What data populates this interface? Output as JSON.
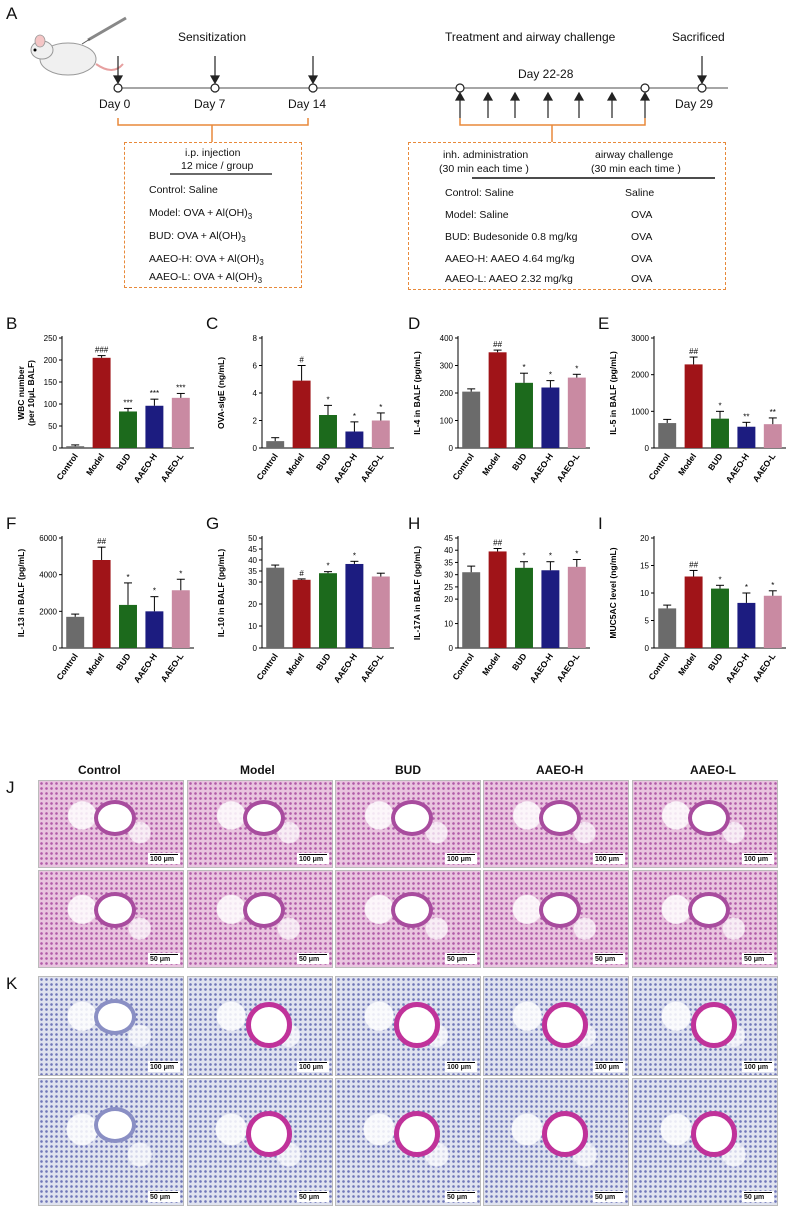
{
  "panel_letters": {
    "a": "A",
    "b": "B",
    "c": "C",
    "d": "D",
    "e": "E",
    "f": "F",
    "g": "G",
    "h": "H",
    "i": "I",
    "j": "J",
    "k": "K"
  },
  "timeline": {
    "sensitization": "Sensitization",
    "treatment": "Treatment and  airway challenge",
    "sacrificed": "Sacrificed",
    "day_range": "Day 22-28",
    "days": [
      "Day 0",
      "Day 7",
      "Day 14",
      "Day 29"
    ]
  },
  "left_box": {
    "line1": "i.p. injection",
    "line2": "12 mice / group",
    "rows": [
      "Control: Saline",
      "Model: OVA + Al(OH)",
      "BUD: OVA + Al(OH)",
      "AAEO-H: OVA + Al(OH)",
      "AAEO-L: OVA + Al(OH)"
    ],
    "subscript": "3"
  },
  "right_box": {
    "col1_h1": "inh. administration",
    "col1_h2": "(30 min each time )",
    "col2_h1": "airway challenge",
    "col2_h2": "(30 min each time )",
    "rows": [
      {
        "left": "Control: Saline",
        "right": "Saline"
      },
      {
        "left": "Model: Saline",
        "right": "OVA"
      },
      {
        "left": "BUD: Budesonide 0.8 mg/kg",
        "right": "OVA"
      },
      {
        "left": "AAEO-H: AAEO 4.64 mg/kg",
        "right": "OVA"
      },
      {
        "left": "AAEO-L: AAEO  2.32 mg/kg",
        "right": "OVA"
      }
    ]
  },
  "colors": {
    "control": "#6b6b6b",
    "model": "#a01418",
    "bud": "#1c6a1c",
    "aaeo_h": "#1c1c80",
    "aaeo_l": "#c98aa2",
    "accent": "#e8893a"
  },
  "chart_data": [
    {
      "type": "bar",
      "ylabel": "WBC number\n(per 10μL BALF)",
      "ylim": [
        0,
        250
      ],
      "ticks": [
        0,
        50,
        100,
        150,
        200,
        250
      ],
      "categories": [
        "Control",
        "Model",
        "BUD",
        "AAEO-H",
        "AAEO-L"
      ],
      "values": [
        4,
        205,
        83,
        96,
        114
      ],
      "errors": [
        3,
        5,
        7,
        15,
        10
      ],
      "annotations": [
        "",
        "###",
        "***",
        "***",
        "***"
      ]
    },
    {
      "type": "bar",
      "ylabel": "OVA-sIgE (ng/mL)",
      "ylim": [
        0,
        8
      ],
      "ticks": [
        0,
        2,
        4,
        6,
        8
      ],
      "categories": [
        "Control",
        "Model",
        "BUD",
        "AAEO-H",
        "AAEO-L"
      ],
      "values": [
        0.5,
        4.9,
        2.4,
        1.2,
        2.0
      ],
      "errors": [
        0.25,
        1.1,
        0.7,
        0.7,
        0.55
      ],
      "annotations": [
        "",
        "#",
        "*",
        "*",
        "*"
      ]
    },
    {
      "type": "bar",
      "ylabel": "IL-4 in BALF (pg/mL)",
      "ylim": [
        0,
        400
      ],
      "ticks": [
        0,
        100,
        200,
        300,
        400
      ],
      "categories": [
        "Control",
        "Model",
        "BUD",
        "AAEO-H",
        "AAEO-L"
      ],
      "values": [
        205,
        348,
        237,
        220,
        256
      ],
      "errors": [
        10,
        8,
        35,
        25,
        12
      ],
      "annotations": [
        "",
        "##",
        "*",
        "*",
        "*"
      ]
    },
    {
      "type": "bar",
      "ylabel": "IL-5 in BALF (pg/mL)",
      "ylim": [
        0,
        3000
      ],
      "ticks": [
        0,
        1000,
        2000,
        3000
      ],
      "categories": [
        "Control",
        "Model",
        "BUD",
        "AAEO-H",
        "AAEO-L"
      ],
      "values": [
        680,
        2280,
        800,
        580,
        650
      ],
      "errors": [
        100,
        200,
        200,
        120,
        170
      ],
      "annotations": [
        "",
        "##",
        "*",
        "**",
        "**"
      ]
    },
    {
      "type": "bar",
      "ylabel": "IL-13 in BALF  (pg/mL)",
      "ylim": [
        0,
        6000
      ],
      "ticks": [
        0,
        2000,
        4000,
        6000
      ],
      "categories": [
        "Control",
        "Model",
        "BUD",
        "AAEO-H",
        "AAEO-L"
      ],
      "values": [
        1700,
        4800,
        2350,
        2000,
        3150
      ],
      "errors": [
        150,
        700,
        1200,
        800,
        600
      ],
      "annotations": [
        "",
        "##",
        "*",
        "*",
        "*"
      ]
    },
    {
      "type": "bar",
      "ylabel": "IL-10 in BALF (pg/mL)",
      "ylim": [
        0,
        50
      ],
      "ticks": [
        0,
        10,
        20,
        30,
        35,
        40,
        45,
        50
      ],
      "categories": [
        "Control",
        "Model",
        "BUD",
        "AAEO-H",
        "AAEO-L"
      ],
      "values": [
        36.5,
        31,
        34,
        38.2,
        32.5
      ],
      "errors": [
        1.2,
        0.4,
        0.7,
        1.2,
        1.5
      ],
      "annotations": [
        "",
        "#",
        "*",
        "*",
        ""
      ]
    },
    {
      "type": "bar",
      "ylabel": "IL-17A in BALF (pg/mL)",
      "ylim": [
        0,
        45
      ],
      "ticks": [
        0,
        10,
        20,
        25,
        30,
        35,
        40,
        45
      ],
      "categories": [
        "Control",
        "Model",
        "BUD",
        "AAEO-H",
        "AAEO-L"
      ],
      "values": [
        31,
        39.5,
        32.8,
        31.8,
        33.2
      ],
      "errors": [
        2.5,
        1.2,
        2.5,
        3.5,
        3
      ],
      "annotations": [
        "",
        "##",
        "*",
        "*",
        "*"
      ]
    },
    {
      "type": "bar",
      "ylabel": "MUC5AC level (ng/mL)",
      "ylim": [
        0,
        20
      ],
      "ticks": [
        0,
        5,
        10,
        15,
        20
      ],
      "categories": [
        "Control",
        "Model",
        "BUD",
        "AAEO-H",
        "AAEO-L"
      ],
      "values": [
        7.2,
        13,
        10.8,
        8.2,
        9.5
      ],
      "errors": [
        0.6,
        1.1,
        0.6,
        1.8,
        0.9
      ],
      "annotations": [
        "",
        "##",
        "*",
        "*",
        "*"
      ]
    }
  ],
  "histology": {
    "columns": [
      "Control",
      "Model",
      "BUD",
      "AAEO-H",
      "AAEO-L"
    ],
    "scale_100": "100 μm",
    "scale_50": "50 μm"
  }
}
